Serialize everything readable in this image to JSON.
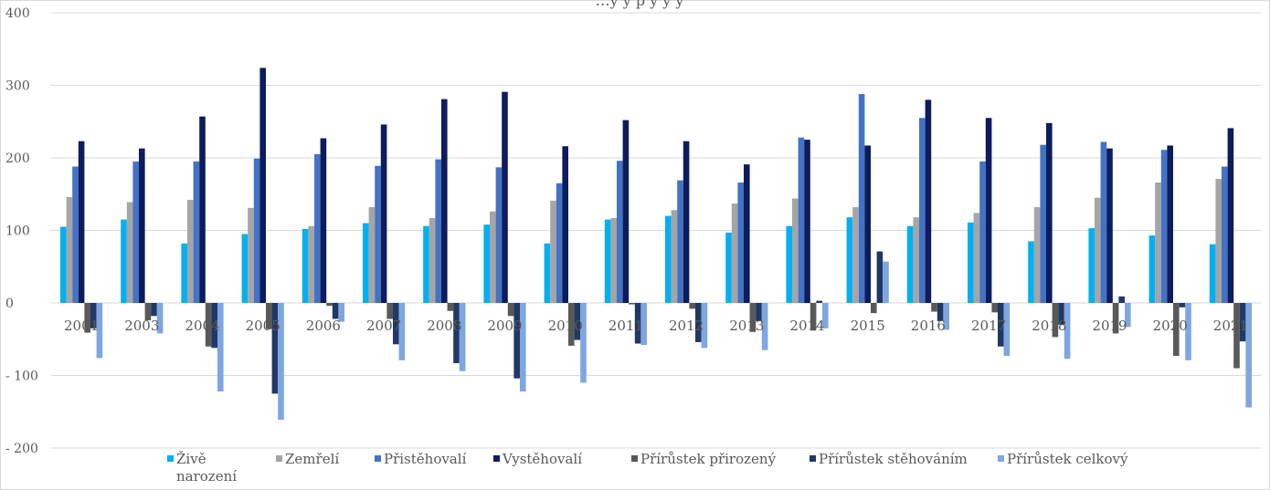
{
  "chart_data": {
    "type": "bar",
    "title": "…y      y  p            y      y                                      y",
    "categories": [
      "2001",
      "2003",
      "2004",
      "2005",
      "2006",
      "2007",
      "2008",
      "2009",
      "2010",
      "2011",
      "2012",
      "2013",
      "2014",
      "2015",
      "2016",
      "2017",
      "2018",
      "2019",
      "2020",
      "2021"
    ],
    "y_ticks": [
      "400",
      "300",
      "200",
      "100",
      "0",
      "- 100",
      "- 200"
    ],
    "ylim": [
      -200,
      400
    ],
    "grid": true,
    "legend_position": "bottom",
    "series": [
      {
        "name": "Živě narození",
        "legend_lines": [
          "Živě",
          "narození"
        ],
        "color": "#00b0f0",
        "values": [
          105,
          115,
          82,
          95,
          102,
          110,
          106,
          108,
          82,
          115,
          120,
          97,
          106,
          118,
          106,
          111,
          85,
          103,
          93,
          81
        ]
      },
      {
        "name": "Zemřelí",
        "legend_lines": [
          "Zemřelí"
        ],
        "color": "#a5a5a5",
        "values": [
          146,
          139,
          142,
          131,
          106,
          132,
          117,
          126,
          141,
          117,
          128,
          137,
          144,
          132,
          118,
          124,
          132,
          145,
          166,
          171
        ]
      },
      {
        "name": "Přistěhovalí",
        "legend_lines": [
          "Přistěhovalí"
        ],
        "color": "#4472c4",
        "values": [
          188,
          195,
          195,
          199,
          205,
          189,
          198,
          187,
          165,
          196,
          169,
          166,
          228,
          288,
          255,
          195,
          218,
          222,
          211,
          188
        ]
      },
      {
        "name": "Vystěhovalí",
        "legend_lines": [
          "Vystěhovalí"
        ],
        "color": "#0c1c5c",
        "values": [
          223,
          213,
          257,
          324,
          227,
          246,
          281,
          291,
          216,
          252,
          223,
          191,
          225,
          217,
          280,
          255,
          248,
          213,
          217,
          241
        ]
      },
      {
        "name": "Přírůstek přirozený",
        "legend_lines": [
          "Přírůstek přirozený"
        ],
        "color": "#595959",
        "values": [
          -41,
          -24,
          -60,
          -36,
          -4,
          -22,
          -11,
          -18,
          -59,
          -2,
          -8,
          -40,
          -38,
          -14,
          -12,
          -13,
          -47,
          -42,
          -73,
          -90
        ]
      },
      {
        "name": "Přírůstek stěhováním",
        "legend_lines": [
          "Přírůstek stěhováním"
        ],
        "color": "#203864",
        "values": [
          -35,
          -18,
          -62,
          -125,
          -22,
          -57,
          -83,
          -104,
          -51,
          -56,
          -54,
          -25,
          3,
          71,
          -25,
          -60,
          -30,
          9,
          -6,
          -53
        ]
      },
      {
        "name": "Přírůstek celkový",
        "legend_lines": [
          "Přírůstek celkový"
        ],
        "color": "#7ea6e0",
        "values": [
          -76,
          -42,
          -122,
          -161,
          -26,
          -79,
          -94,
          -122,
          -110,
          -58,
          -62,
          -65,
          -35,
          57,
          -37,
          -73,
          -77,
          -33,
          -79,
          -144
        ]
      }
    ]
  }
}
